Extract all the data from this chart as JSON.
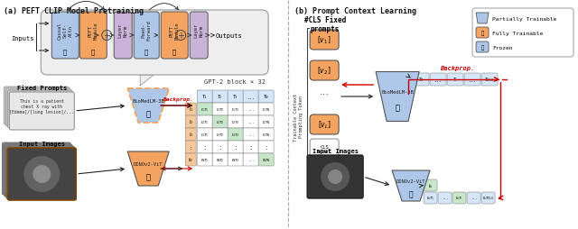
{
  "title_a": "(a) PEFT CLIP Model Pretraining",
  "title_b": "(b) Prompt Context Learning",
  "blue_color": "#aec6e8",
  "orange_color": "#f4a460",
  "purple_color": "#c9b3d9",
  "green_cell": "#c8e6c9",
  "light_blue_cell": "#d4e6f8",
  "orange_cell": "#f4c89a",
  "backprop_color": "#cc0000",
  "arrow_color": "#222222",
  "divider_color": "#aaaaaa",
  "gpt_label": "GPT-2 block × 32",
  "fixed_prompts_label": "Fixed Prompts",
  "input_images_label": "Input Images",
  "biomed_label": "BioMedLM-3B",
  "dinov2_label": "DINOv2-ViT",
  "backprop_label": "Backprop.",
  "cls_label": "#CLS Fixed\nprompts",
  "input_images_b_label": "Input Images",
  "legend_partial": "Partially Trainable",
  "legend_full": "Fully Trainable",
  "legend_frozen": "Frozen"
}
